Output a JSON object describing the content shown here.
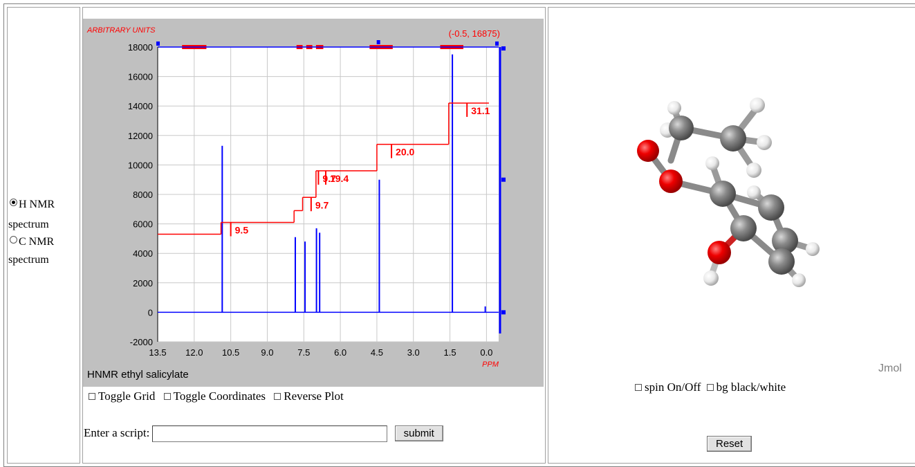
{
  "left_panel": {
    "options": [
      {
        "label_line1": "H NMR",
        "label_line2": "spectrum",
        "selected": true
      },
      {
        "label_line1": "C NMR",
        "label_line2": "spectrum",
        "selected": false
      }
    ]
  },
  "spectrum": {
    "y_units_label": "ARBITRARY UNITS",
    "x_units_label": "PPM",
    "coordinate_readout": "(-0.5, 16875)",
    "title": "HNMR ethyl salicylate",
    "colors": {
      "background": "#c0c0c0",
      "plot": "#ffffff",
      "trace": "#0000ff",
      "integral": "#ff0000",
      "grid": "#c8c8c8"
    }
  },
  "chart_data": {
    "type": "line",
    "title": "HNMR ethyl salicylate",
    "xlabel": "PPM",
    "ylabel": "ARBITRARY UNITS",
    "xlim": [
      13.5,
      -0.5
    ],
    "ylim": [
      -2000,
      18000
    ],
    "x_ticks": [
      "13.5",
      "12.0",
      "10.5",
      "9.0",
      "7.5",
      "6.0",
      "4.5",
      "3.0",
      "1.5",
      "0.0"
    ],
    "y_ticks": [
      "18000",
      "16000",
      "14000",
      "12000",
      "10000",
      "8000",
      "6000",
      "4000",
      "2000",
      "0",
      "-2000"
    ],
    "grid": true,
    "peaks": [
      {
        "ppm": 10.85,
        "height": 11300
      },
      {
        "ppm": 7.85,
        "height": 5100
      },
      {
        "ppm": 7.45,
        "height": 4800
      },
      {
        "ppm": 6.98,
        "height": 5700
      },
      {
        "ppm": 6.85,
        "height": 5400
      },
      {
        "ppm": 4.4,
        "height": 9000
      },
      {
        "ppm": 1.4,
        "height": 17500
      },
      {
        "ppm": 0.05,
        "height": 400
      }
    ],
    "integrals": [
      {
        "label": "9.5",
        "ppm": 10.5,
        "value": 9.5
      },
      {
        "label": "9.7",
        "ppm": 7.2,
        "value": 9.7
      },
      {
        "label": "9.7",
        "ppm": 6.9,
        "value": 9.7
      },
      {
        "label": "19.4",
        "ppm": 6.6,
        "value": 19.4
      },
      {
        "label": "20.0",
        "ppm": 3.9,
        "value": 20.0
      },
      {
        "label": "31.1",
        "ppm": 0.8,
        "value": 31.1
      }
    ],
    "integral_steps": [
      {
        "from_ppm": 13.5,
        "to_ppm": 10.9,
        "y": 5300
      },
      {
        "from_ppm": 10.9,
        "to_ppm": 7.9,
        "y": 6100
      },
      {
        "from_ppm": 7.9,
        "to_ppm": 7.55,
        "y": 6900
      },
      {
        "from_ppm": 7.55,
        "to_ppm": 7.0,
        "y": 7800
      },
      {
        "from_ppm": 7.0,
        "to_ppm": 4.5,
        "y": 9600
      },
      {
        "from_ppm": 4.5,
        "to_ppm": 1.55,
        "y": 11400
      },
      {
        "from_ppm": 1.55,
        "to_ppm": -0.1,
        "y": 14200
      }
    ]
  },
  "controls": {
    "toggle_grid": "Toggle Grid",
    "toggle_coordinates": "Toggle Coordinates",
    "reverse_plot": "Reverse Plot",
    "script_label": "Enter a script:",
    "submit_label": "submit"
  },
  "viewer": {
    "brand": "Jmol",
    "spin_label": "spin On/Off",
    "bg_label": "bg black/white",
    "reset_label": "Reset"
  }
}
